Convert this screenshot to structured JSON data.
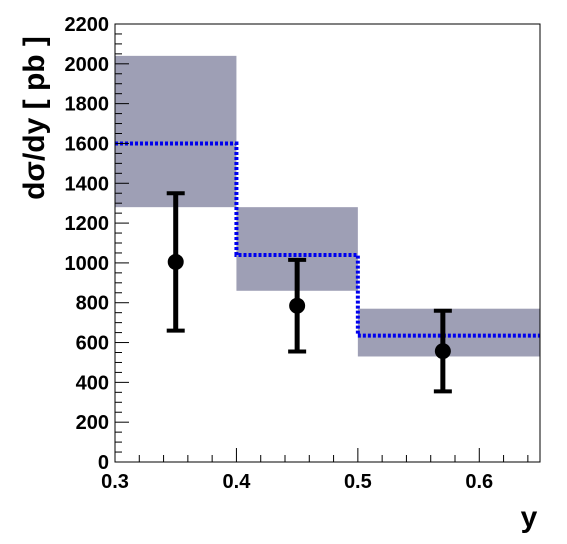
{
  "chart_data": {
    "type": "bar",
    "xlabel": "y",
    "ylabel": "dσ/dy  [ pb ]",
    "xlim": [
      0.3,
      0.65
    ],
    "ylim": [
      0,
      2200
    ],
    "x_ticks": [
      0.3,
      0.4,
      0.5,
      0.6
    ],
    "x_tick_labels": [
      "0.3",
      "0.4",
      "0.5",
      "0.6"
    ],
    "y_ticks": [
      0,
      200,
      400,
      600,
      800,
      1000,
      1200,
      1400,
      1600,
      1800,
      2000,
      2200
    ],
    "y_tick_labels": [
      "0",
      "200",
      "400",
      "600",
      "800",
      "1000",
      "1200",
      "1400",
      "1600",
      "1800",
      "2000",
      "2200"
    ],
    "grid": false,
    "legend": "none",
    "series": [
      {
        "kind": "uncertainty-band",
        "color": "#9e9fb5",
        "bins": [
          {
            "x_low": 0.3,
            "x_high": 0.4,
            "low": 1280,
            "high": 2040
          },
          {
            "x_low": 0.4,
            "x_high": 0.5,
            "low": 860,
            "high": 1280
          },
          {
            "x_low": 0.5,
            "x_high": 0.65,
            "low": 530,
            "high": 770
          }
        ]
      },
      {
        "kind": "step-histogram",
        "color": "#0000ee",
        "style": "dotted",
        "bins": [
          {
            "x_low": 0.3,
            "x_high": 0.4,
            "value": 1600
          },
          {
            "x_low": 0.4,
            "x_high": 0.5,
            "value": 1040
          },
          {
            "x_low": 0.5,
            "x_high": 0.65,
            "value": 635
          }
        ]
      },
      {
        "kind": "points-with-errors",
        "color": "#000000",
        "points": [
          {
            "x": 0.35,
            "y": 1005,
            "y_low": 660,
            "y_high": 1350
          },
          {
            "x": 0.45,
            "y": 785,
            "y_low": 555,
            "y_high": 1015
          },
          {
            "x": 0.57,
            "y": 557,
            "y_low": 355,
            "y_high": 760
          }
        ]
      }
    ]
  }
}
